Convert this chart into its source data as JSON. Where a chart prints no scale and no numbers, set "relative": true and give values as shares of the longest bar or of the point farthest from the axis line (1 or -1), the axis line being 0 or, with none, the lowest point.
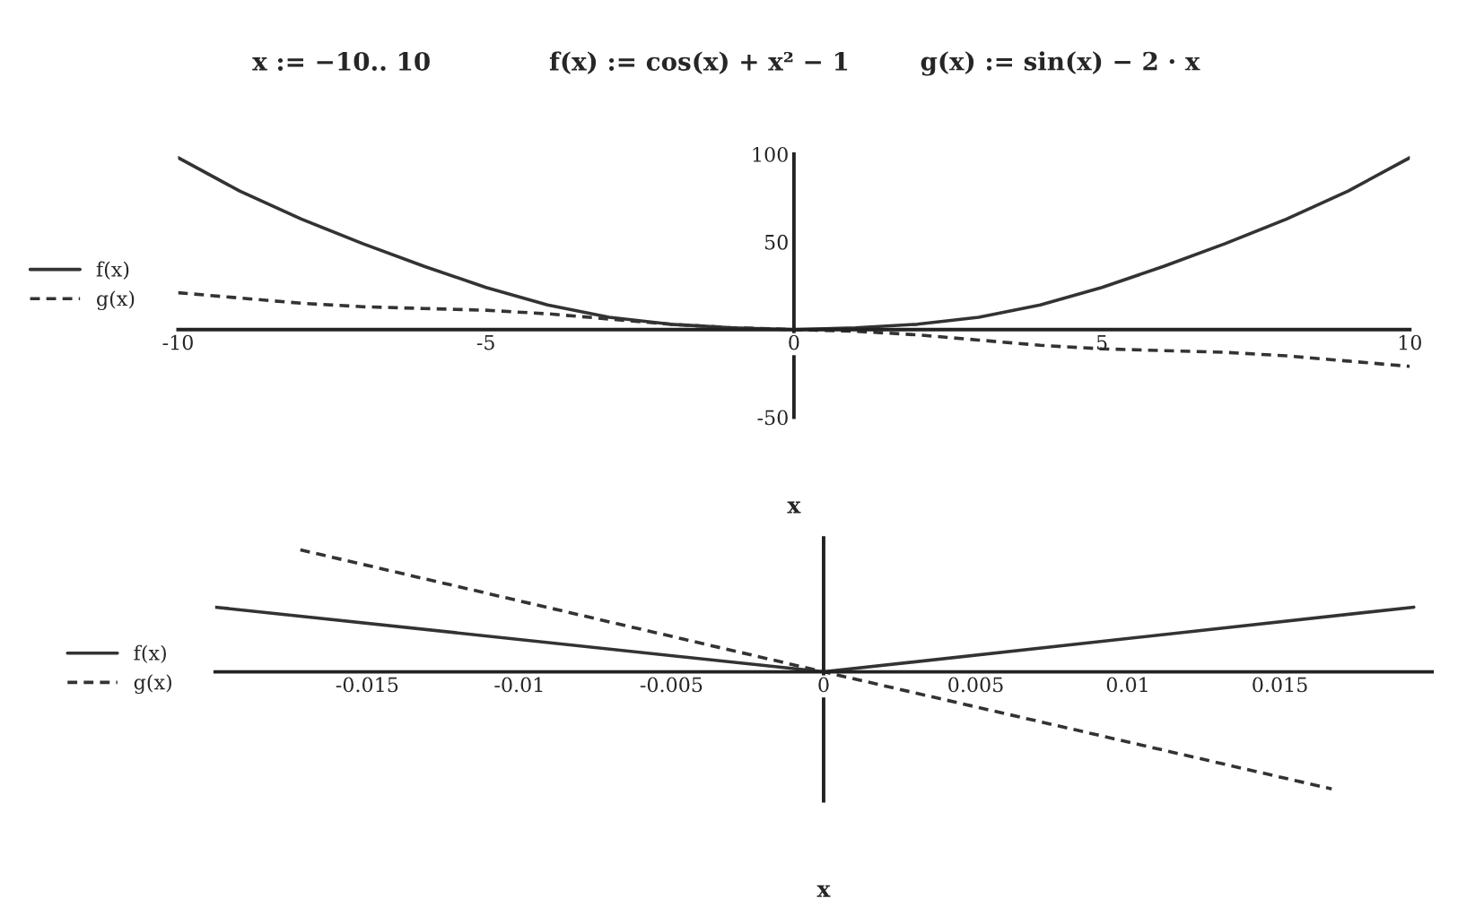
{
  "chart_data": [
    {
      "type": "line",
      "annotations": [
        "x := −10.. 10",
        "f(x) := cos(x) + x² − 1",
        "g(x) := sin(x) − 2 · x"
      ],
      "xlabel": "x",
      "x": [
        -10,
        -9,
        -8,
        -7,
        -6,
        -5,
        -4,
        -3,
        -2,
        -1,
        0,
        1,
        2,
        3,
        4,
        5,
        6,
        7,
        8,
        9,
        10
      ],
      "series": [
        {
          "name": "f(x)",
          "color": "#333333",
          "line_style": "solid",
          "values": [
            98,
            79,
            63,
            49,
            36,
            24,
            14,
            7,
            3,
            1,
            0,
            1,
            3,
            7,
            14,
            24,
            36,
            49,
            63,
            79,
            98
          ]
        },
        {
          "name": "g(x)",
          "color": "#333333",
          "line_style": "dashed",
          "values": [
            21,
            18,
            15,
            13,
            12,
            11,
            9,
            6,
            3,
            1,
            0,
            -1,
            -3,
            -6,
            -9,
            -11,
            -12,
            -13,
            -15,
            -18,
            -21
          ]
        }
      ],
      "xlim": [
        -10,
        10
      ],
      "xticks": [
        -10,
        -5,
        0,
        5,
        10
      ],
      "ylim": [
        -50,
        100
      ],
      "yticks": [
        -50,
        50,
        100
      ],
      "legend": "left"
    },
    {
      "type": "line",
      "relative": true,
      "xlabel": "x",
      "series": [
        {
          "name": "f(x)",
          "color": "#333333",
          "line_style": "solid",
          "x": [
            -0.02,
            0,
            0.0194
          ],
          "values": [
            0.53,
            0,
            0.53
          ]
        },
        {
          "name": "g(x)",
          "color": "#333333",
          "line_style": "dashed",
          "x": [
            -0.0172,
            0,
            0.0167
          ],
          "values": [
            1,
            0,
            -0.96
          ]
        }
      ],
      "xlim": [
        -0.02,
        0.02
      ],
      "xticks": [
        -0.015,
        -0.01,
        -0.005,
        0,
        0.005,
        0.01,
        0.015
      ],
      "legend": "left"
    }
  ]
}
